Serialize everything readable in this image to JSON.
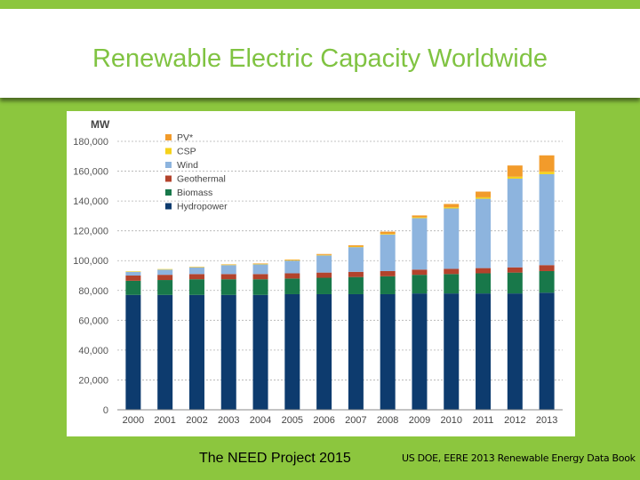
{
  "header": {
    "title": "Renewable Electric Capacity Worldwide"
  },
  "footer": {
    "left": "The NEED Project 2015",
    "right": "US DOE, EERE 2013  Renewable Energy Data Book"
  },
  "colors": {
    "pv": "#f29b2b",
    "csp": "#f5d21b",
    "wind": "#8db4de",
    "geothermal": "#b3432c",
    "biomass": "#18784a",
    "hydropower": "#0d3b6e"
  },
  "chart_data": {
    "type": "bar",
    "stacked": true,
    "title": "",
    "ylabel": "MW",
    "xlabel": "",
    "ylim": [
      0,
      180000
    ],
    "yticks": [
      "0",
      "20,000",
      "40,000",
      "60,000",
      "80,000",
      "100,000",
      "120,000",
      "140,000",
      "160,000",
      "180,000"
    ],
    "ytick_values": [
      0,
      20000,
      40000,
      60000,
      80000,
      100000,
      120000,
      140000,
      160000,
      180000
    ],
    "grid": true,
    "legend_position": "top-left",
    "categories": [
      "2000",
      "2001",
      "2002",
      "2003",
      "2004",
      "2005",
      "2006",
      "2007",
      "2008",
      "2009",
      "2010",
      "2011",
      "2012",
      "2013"
    ],
    "series": [
      {
        "name": "Hydropower",
        "color": "#0d3b6e",
        "values": [
          77000,
          77000,
          77000,
          77000,
          77000,
          77500,
          77500,
          77500,
          77500,
          78000,
          78000,
          78000,
          78000,
          78500
        ]
      },
      {
        "name": "Biomass",
        "color": "#18784a",
        "values": [
          9500,
          10000,
          10500,
          10500,
          10500,
          10500,
          11000,
          11500,
          12000,
          12500,
          13000,
          13500,
          14000,
          14500
        ]
      },
      {
        "name": "Geothermal",
        "color": "#b3432c",
        "values": [
          3500,
          3500,
          3500,
          3500,
          3500,
          3500,
          3500,
          3500,
          3500,
          3500,
          3500,
          3500,
          3500,
          4000
        ]
      },
      {
        "name": "Wind",
        "color": "#8db4de",
        "values": [
          2500,
          3500,
          4500,
          6000,
          6500,
          8500,
          11500,
          16500,
          24500,
          34500,
          40500,
          46500,
          59500,
          61000
        ]
      },
      {
        "name": "CSP",
        "color": "#f5d21b",
        "values": [
          350,
          350,
          350,
          350,
          350,
          350,
          350,
          400,
          450,
          600,
          800,
          1000,
          1300,
          1600
        ]
      },
      {
        "name": "PV*",
        "color": "#f29b2b",
        "values": [
          0,
          0,
          100,
          200,
          300,
          400,
          600,
          900,
          1500,
          1200,
          2200,
          3800,
          7500,
          11000
        ]
      }
    ]
  }
}
